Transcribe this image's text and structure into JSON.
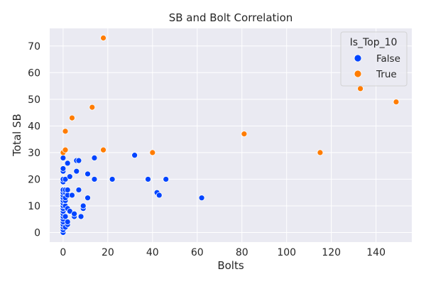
{
  "chart_data": {
    "type": "scatter",
    "title": "SB and Bolt Correlation",
    "xlabel": "Bolts",
    "ylabel": "Total SB",
    "xlim": [
      -6,
      156
    ],
    "ylim": [
      -3.6,
      76.6
    ],
    "xticks": [
      0,
      20,
      40,
      60,
      80,
      100,
      120,
      140
    ],
    "yticks": [
      0,
      10,
      20,
      30,
      40,
      50,
      60,
      70
    ],
    "grid": true,
    "legend": {
      "title": "Is_Top_10",
      "placement": "top-right"
    },
    "series": [
      {
        "name": "False",
        "color": "#0044ff",
        "points": [
          [
            0,
            0
          ],
          [
            0,
            1
          ],
          [
            0,
            2
          ],
          [
            0,
            3
          ],
          [
            0,
            4
          ],
          [
            0,
            5
          ],
          [
            0,
            6
          ],
          [
            0,
            7
          ],
          [
            0,
            8
          ],
          [
            0,
            9
          ],
          [
            0,
            10
          ],
          [
            0,
            11
          ],
          [
            0,
            12
          ],
          [
            0,
            13
          ],
          [
            0,
            14
          ],
          [
            0,
            15
          ],
          [
            0,
            16
          ],
          [
            0,
            19
          ],
          [
            0,
            20
          ],
          [
            0,
            23
          ],
          [
            0,
            24
          ],
          [
            0,
            28
          ],
          [
            1,
            2
          ],
          [
            1,
            6
          ],
          [
            1,
            10
          ],
          [
            1,
            12
          ],
          [
            1,
            13
          ],
          [
            1,
            15
          ],
          [
            1,
            16
          ],
          [
            1,
            20
          ],
          [
            2,
            3
          ],
          [
            2,
            4
          ],
          [
            2,
            9
          ],
          [
            2,
            14
          ],
          [
            2,
            16
          ],
          [
            2,
            26
          ],
          [
            3,
            8
          ],
          [
            3,
            21
          ],
          [
            4,
            14
          ],
          [
            5,
            6
          ],
          [
            5,
            7
          ],
          [
            6,
            23
          ],
          [
            6,
            27
          ],
          [
            7,
            16
          ],
          [
            7,
            27
          ],
          [
            8,
            6
          ],
          [
            9,
            9
          ],
          [
            9,
            10
          ],
          [
            11,
            13
          ],
          [
            11,
            22
          ],
          [
            14,
            20
          ],
          [
            14,
            28
          ],
          [
            22,
            20
          ],
          [
            32,
            29
          ],
          [
            38,
            20
          ],
          [
            42,
            15
          ],
          [
            43,
            14
          ],
          [
            46,
            20
          ],
          [
            62,
            13
          ]
        ]
      },
      {
        "name": "True",
        "color": "#ff7c00",
        "points": [
          [
            0,
            30
          ],
          [
            1,
            31
          ],
          [
            1,
            38
          ],
          [
            4,
            43
          ],
          [
            13,
            47
          ],
          [
            18,
            73
          ],
          [
            18,
            31
          ],
          [
            40,
            30
          ],
          [
            81,
            37
          ],
          [
            115,
            30
          ],
          [
            133,
            54
          ],
          [
            149,
            49
          ]
        ]
      }
    ]
  }
}
